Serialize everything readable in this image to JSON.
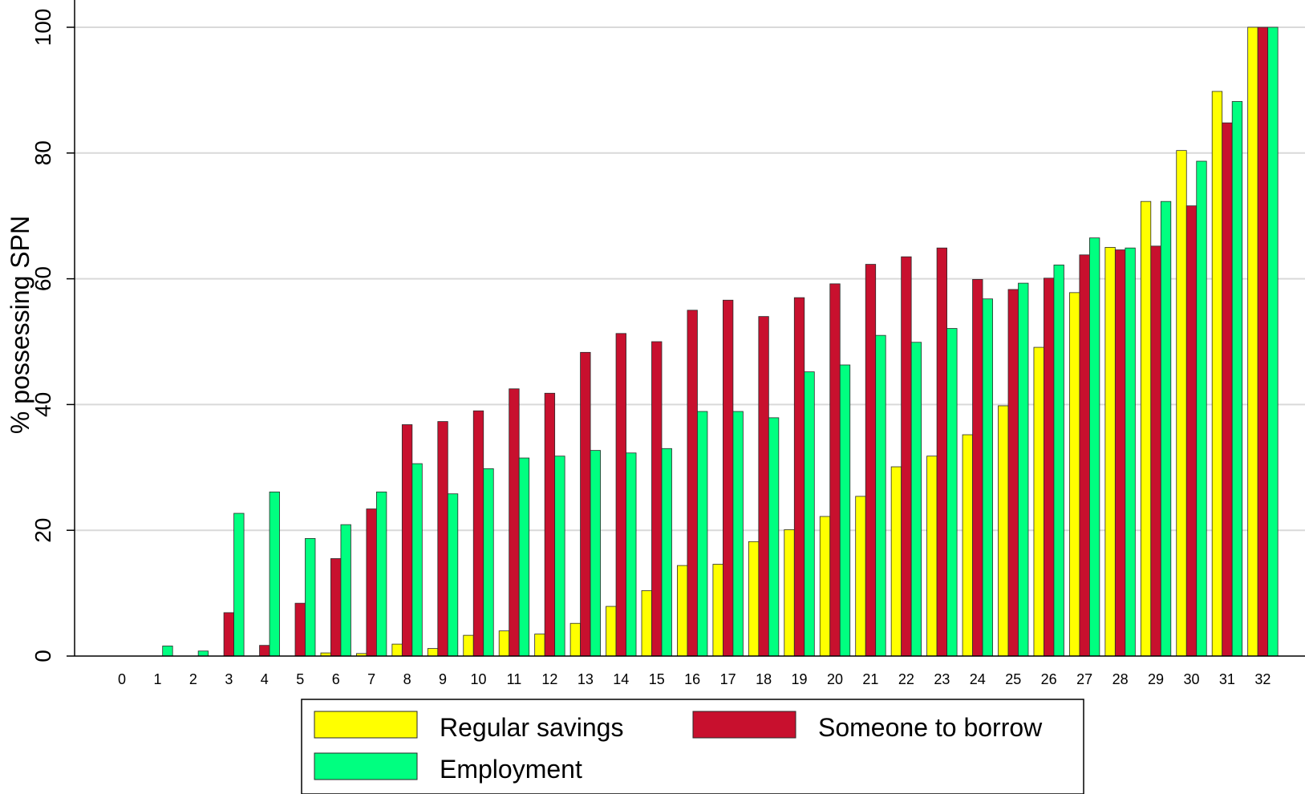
{
  "chart_data": {
    "type": "bar",
    "title": "",
    "xlabel": "",
    "ylabel": "% possessing SPN",
    "ylim": [
      0,
      100
    ],
    "y_ticks": [
      0,
      20,
      40,
      60,
      80,
      100
    ],
    "grid": true,
    "legend_position": "bottom",
    "categories": [
      "0",
      "1",
      "2",
      "3",
      "4",
      "5",
      "6",
      "7",
      "8",
      "9",
      "10",
      "11",
      "12",
      "13",
      "14",
      "15",
      "16",
      "17",
      "18",
      "19",
      "20",
      "21",
      "22",
      "23",
      "24",
      "25",
      "26",
      "27",
      "28",
      "29",
      "30",
      "31",
      "32"
    ],
    "series": [
      {
        "name": "Regular savings",
        "color": "#ffff00",
        "values": [
          0,
          0,
          0,
          0,
          0,
          0,
          0.5,
          0.4,
          1.9,
          1.2,
          3.3,
          4.0,
          3.5,
          5.2,
          7.9,
          10.4,
          14.4,
          14.6,
          18.2,
          20.1,
          22.2,
          25.4,
          30.1,
          31.8,
          35.2,
          39.8,
          49.1,
          57.8,
          65.0,
          72.3,
          80.4,
          89.8,
          100
        ]
      },
      {
        "name": "Someone to borrow",
        "color": "#c8102e",
        "values": [
          0,
          0,
          0,
          6.9,
          1.7,
          8.4,
          15.5,
          23.4,
          36.8,
          37.3,
          39.0,
          42.5,
          41.8,
          48.3,
          51.3,
          50.0,
          55.0,
          56.6,
          54.0,
          57.0,
          59.2,
          62.3,
          63.5,
          64.9,
          59.9,
          58.3,
          60.1,
          63.8,
          64.6,
          65.2,
          71.6,
          84.8,
          100
        ]
      },
      {
        "name": "Employment",
        "color": "#00ff80",
        "values": [
          0,
          1.6,
          0.8,
          22.7,
          26.1,
          18.7,
          20.9,
          26.1,
          30.6,
          25.8,
          29.8,
          31.5,
          31.8,
          32.7,
          32.3,
          33.0,
          38.9,
          38.9,
          37.9,
          45.2,
          46.3,
          51.0,
          49.9,
          52.1,
          56.8,
          59.3,
          62.2,
          66.5,
          64.9,
          72.3,
          78.7,
          88.2,
          100
        ]
      }
    ],
    "legend": {
      "items": [
        "Regular savings",
        "Someone to borrow",
        "Employment"
      ]
    }
  }
}
